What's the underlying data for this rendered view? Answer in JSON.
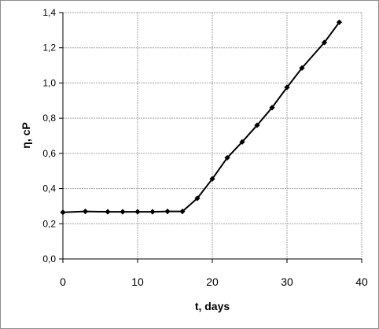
{
  "chart_data": {
    "type": "line",
    "title": "",
    "xlabel": "t, days",
    "ylabel": "η, cP",
    "xlim": [
      0,
      40
    ],
    "ylim": [
      0,
      1.4
    ],
    "x_ticks": [
      "0",
      "10",
      "20",
      "30",
      "40"
    ],
    "y_ticks": [
      "0,0",
      "0,2",
      "0,4",
      "0,6",
      "0,8",
      "1,0",
      "1,2",
      "1,4"
    ],
    "grid": true,
    "legend": "none",
    "series": [
      {
        "color": "#000000",
        "marker": "diamond",
        "x": [
          0,
          3,
          6,
          8,
          10,
          12,
          14,
          16,
          18,
          20,
          22,
          24,
          26,
          28,
          30,
          32,
          35,
          37
        ],
        "y": [
          0.265,
          0.27,
          0.268,
          0.268,
          0.268,
          0.268,
          0.27,
          0.27,
          0.345,
          0.455,
          0.575,
          0.665,
          0.76,
          0.86,
          0.975,
          1.085,
          1.23,
          1.345
        ]
      }
    ]
  }
}
